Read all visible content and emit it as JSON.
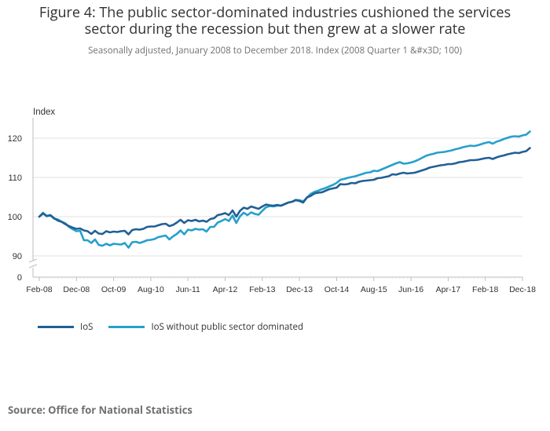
{
  "title_line1": "Figure 4: The public sector-dominated industries cushioned the services",
  "title_line2": "sector during the recession but then grew at a slower rate",
  "subtitle": "Seasonally adjusted, January 2008 to December 2018. Index (2008 Quarter 1 &#x3D; 100)",
  "source": "Source: Office for National Statistics",
  "chart_data": {
    "type": "line",
    "title": "Figure 4: The public sector-dominated industries cushioned the services sector during the recession but then grew at a slower rate",
    "ylabel": "Index",
    "xlabel": "",
    "ylim": [
      88,
      123
    ],
    "y_ticks": [
      90,
      100,
      110,
      120
    ],
    "y_break_label": "0",
    "x_tick_labels": [
      "Feb-08",
      "Dec-08",
      "Oct-09",
      "Aug-10",
      "Jun-11",
      "Apr-12",
      "Feb-13",
      "Dec-13",
      "Oct-14",
      "Aug-15",
      "Jun-16",
      "Apr-17",
      "Feb-18",
      "Dec-18"
    ],
    "x_tick_month_index": [
      0,
      10,
      20,
      30,
      40,
      50,
      60,
      70,
      80,
      90,
      100,
      110,
      120,
      130
    ],
    "start_month": "Feb-08",
    "series": [
      {
        "name": "IoS",
        "color": "#206095",
        "values": [
          100.0,
          100.8,
          100.2,
          100.4,
          99.6,
          99.0,
          98.7,
          98.1,
          97.6,
          97.2,
          96.9,
          97.0,
          96.5,
          96.3,
          95.6,
          96.4,
          95.7,
          95.6,
          96.3,
          96.0,
          96.2,
          96.1,
          96.3,
          96.4,
          95.5,
          96.6,
          96.8,
          96.7,
          96.9,
          97.4,
          97.5,
          97.5,
          97.8,
          98.1,
          98.2,
          97.6,
          97.9,
          98.5,
          99.2,
          98.4,
          99.1,
          98.9,
          99.2,
          98.8,
          99.0,
          98.7,
          99.4,
          99.6,
          100.4,
          100.6,
          100.9,
          100.4,
          101.6,
          100.0,
          101.5,
          102.3,
          102.0,
          102.6,
          102.3,
          102.0,
          102.6,
          103.1,
          102.9,
          102.8,
          103.0,
          102.8,
          103.2,
          103.6,
          103.8,
          104.2,
          104.0,
          103.6,
          104.9,
          105.3,
          105.9,
          106.1,
          106.2,
          106.6,
          107.0,
          107.2,
          107.4,
          108.3,
          108.2,
          108.3,
          108.6,
          108.5,
          108.9,
          109.1,
          109.2,
          109.3,
          109.4,
          109.8,
          109.9,
          110.1,
          110.3,
          110.8,
          110.7,
          111.0,
          111.2,
          111.0,
          111.1,
          111.2,
          111.5,
          111.8,
          112.1,
          112.5,
          112.7,
          112.9,
          113.1,
          113.2,
          113.4,
          113.4,
          113.6,
          113.9,
          114.0,
          114.2,
          114.4,
          114.4,
          114.5,
          114.7,
          114.9,
          115.0,
          114.7,
          115.1,
          115.4,
          115.6,
          115.9,
          116.1,
          116.3,
          116.2,
          116.5,
          116.7,
          117.5
        ]
      },
      {
        "name": "IoS without public sector dominated",
        "color": "#27a0cc",
        "values": [
          100.0,
          101.0,
          100.1,
          100.3,
          99.5,
          99.3,
          98.7,
          98.3,
          97.4,
          96.8,
          96.3,
          96.4,
          94.0,
          94.0,
          93.3,
          94.2,
          92.8,
          92.6,
          93.1,
          92.7,
          93.1,
          93.0,
          92.9,
          93.3,
          92.1,
          93.5,
          93.6,
          93.3,
          93.6,
          94.0,
          94.1,
          94.3,
          94.8,
          95.0,
          95.2,
          94.2,
          95.0,
          95.6,
          96.5,
          95.5,
          96.7,
          96.5,
          96.9,
          96.7,
          96.8,
          96.2,
          97.4,
          97.4,
          98.5,
          98.9,
          99.4,
          98.9,
          100.3,
          98.4,
          100.1,
          101.0,
          100.4,
          101.1,
          100.7,
          100.5,
          101.5,
          102.4,
          102.7,
          102.6,
          102.8,
          102.8,
          103.2,
          103.6,
          103.8,
          104.3,
          104.2,
          103.9,
          104.8,
          105.8,
          106.3,
          106.6,
          107.0,
          107.3,
          107.7,
          108.1,
          108.6,
          109.4,
          109.6,
          109.9,
          110.1,
          110.3,
          110.6,
          110.9,
          111.2,
          111.3,
          111.7,
          111.6,
          112.0,
          112.4,
          112.8,
          113.2,
          113.6,
          113.9,
          113.5,
          113.6,
          113.8,
          114.1,
          114.5,
          115.0,
          115.5,
          115.8,
          116.0,
          116.3,
          116.4,
          116.5,
          116.7,
          116.9,
          117.2,
          117.4,
          117.7,
          117.9,
          118.1,
          118.0,
          118.2,
          118.5,
          118.8,
          119.0,
          118.6,
          119.1,
          119.4,
          119.8,
          120.1,
          120.4,
          120.5,
          120.4,
          120.7,
          120.9,
          121.7
        ]
      }
    ]
  }
}
